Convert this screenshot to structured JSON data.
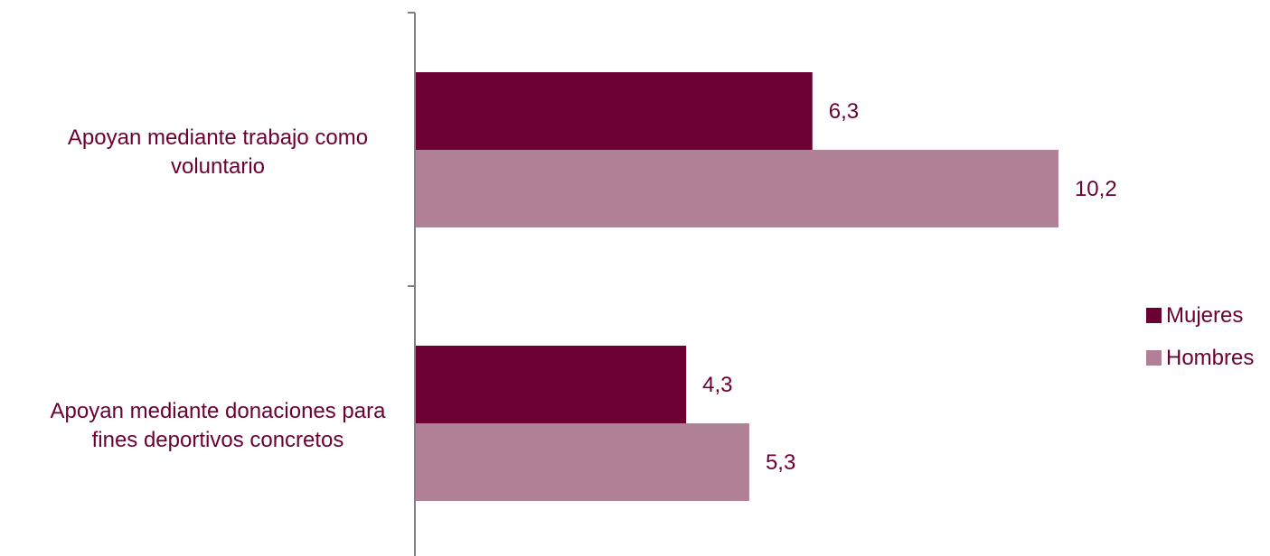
{
  "chart_data": {
    "type": "bar",
    "orientation": "horizontal",
    "categories": [
      "Apoyan mediante trabajo como voluntario",
      "Apoyan mediante donaciones para fines deportivos concretos"
    ],
    "category_lines": [
      [
        "Apoyan mediante trabajo como",
        "voluntario"
      ],
      [
        "Apoyan mediante donaciones para",
        "fines deportivos concretos"
      ]
    ],
    "series": [
      {
        "name": "Mujeres",
        "values": [
          6.3,
          4.3
        ],
        "labels": [
          "6,3",
          "4,3"
        ],
        "color": "#6b0033"
      },
      {
        "name": "Hombres",
        "values": [
          10.2,
          5.3
        ],
        "labels": [
          "10,2",
          "5,3"
        ],
        "color": "#b08097"
      }
    ],
    "xlim": [
      0,
      13.6
    ],
    "grid": false,
    "legend": "right",
    "text_color": "#6b0033",
    "axis_color": "#808080"
  }
}
